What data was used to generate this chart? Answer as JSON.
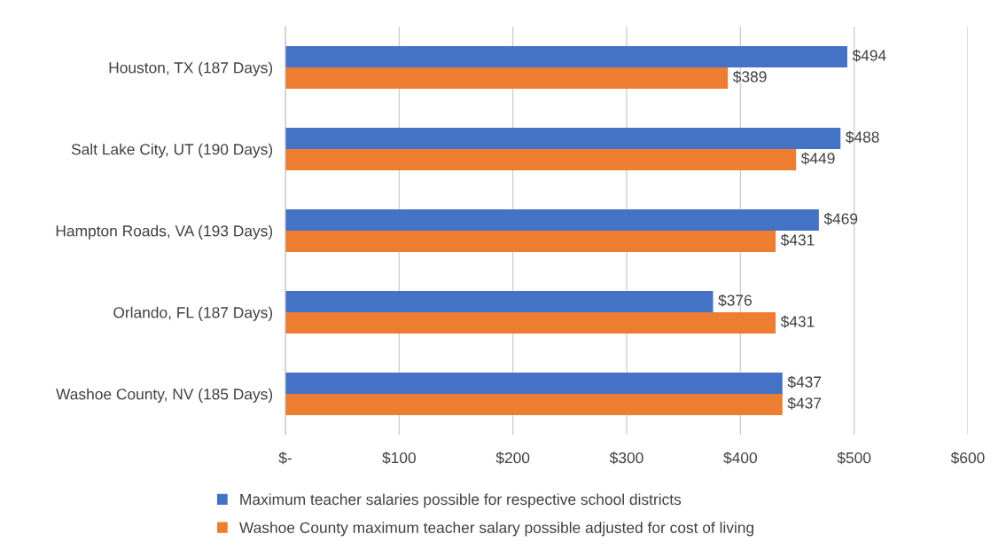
{
  "chart_data": {
    "type": "bar",
    "orientation": "horizontal",
    "categories": [
      "Houston, TX (187 Days)",
      "Salt Lake City, UT (190 Days)",
      "Hampton Roads, VA (193 Days)",
      "Orlando, FL (187 Days)",
      "Washoe County, NV (185 Days)"
    ],
    "series": [
      {
        "name": "Maximum teacher salaries possible for respective school districts",
        "color": "#4472c4",
        "values": [
          494,
          488,
          469,
          376,
          437
        ],
        "value_labels": [
          "$494",
          "$488",
          "$469",
          "$376",
          "$437"
        ]
      },
      {
        "name": "Washoe County maximum teacher salary possible adjusted for cost of living",
        "color": "#ed7d31",
        "values": [
          389,
          449,
          431,
          431,
          437
        ],
        "value_labels": [
          "$389",
          "$449",
          "$431",
          "$431",
          "$437"
        ]
      }
    ],
    "xlim": [
      0,
      600
    ],
    "xticks": [
      {
        "value": 0,
        "label": "$-"
      },
      {
        "value": 100,
        "label": "$100"
      },
      {
        "value": 200,
        "label": "$200"
      },
      {
        "value": 300,
        "label": "$300"
      },
      {
        "value": 400,
        "label": "$400"
      },
      {
        "value": 500,
        "label": "$500"
      },
      {
        "value": 600,
        "label": "$600"
      }
    ],
    "grid": "x",
    "legend": "bottom"
  }
}
